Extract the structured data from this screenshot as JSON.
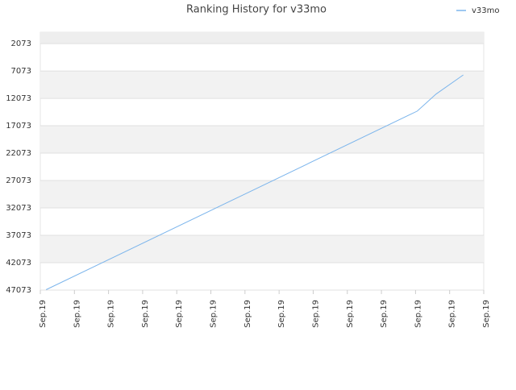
{
  "chart_data": {
    "type": "line",
    "title": "Ranking History for v33mo",
    "x": [
      0.17,
      6,
      11.05,
      11.6,
      12.4
    ],
    "series": [
      {
        "name": "v33mo",
        "color": "#7cb5ec",
        "values": [
          47000,
          29533,
          14400,
          11300,
          7800
        ]
      }
    ],
    "xlim": [
      0,
      13
    ],
    "xticks": [
      {
        "value": 0,
        "label": "Sep.19"
      },
      {
        "value": 1,
        "label": "Sep.19"
      },
      {
        "value": 2,
        "label": "Sep.19"
      },
      {
        "value": 3,
        "label": "Sep.19"
      },
      {
        "value": 4,
        "label": "Sep.19"
      },
      {
        "value": 5,
        "label": "Sep.19"
      },
      {
        "value": 6,
        "label": "Sep.19"
      },
      {
        "value": 7,
        "label": "Sep.19"
      },
      {
        "value": 8,
        "label": "Sep.19"
      },
      {
        "value": 9,
        "label": "Sep.19"
      },
      {
        "value": 10,
        "label": "Sep.19"
      },
      {
        "value": 11,
        "label": "Sep.19"
      },
      {
        "value": 12,
        "label": "Sep.19"
      },
      {
        "value": 13,
        "label": "Sep.19"
      }
    ],
    "ylim": [
      47073,
      0
    ],
    "yticks": [
      2073,
      7073,
      12073,
      17073,
      22073,
      27073,
      32073,
      37073,
      42073,
      47073
    ],
    "grid": true,
    "legend": "top-right"
  }
}
